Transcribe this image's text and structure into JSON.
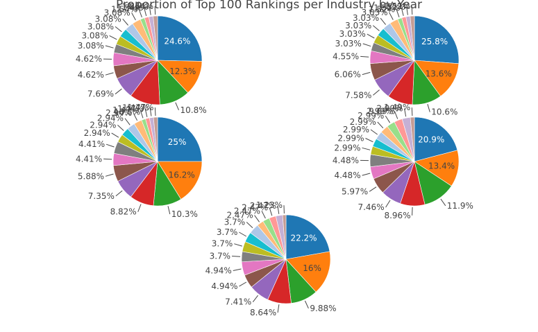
{
  "title": "Proportion of Top 100 Rankings per Industry by Year",
  "colors": [
    "#1f77b4",
    "#ff7f0e",
    "#2ca02c",
    "#d62728",
    "#9467bd",
    "#8c564b",
    "#e377c2",
    "#7f7f7f",
    "#bcbd22",
    "#17becf",
    "#aec7e8",
    "#ffbb78",
    "#98df8a",
    "#ff9896",
    "#c5b0d5",
    "#c49c94",
    "#f7b6d2",
    "#c7c7c7",
    "#dbdb8d",
    "#9edae5"
  ],
  "chart_data": [
    {
      "type": "pie",
      "values": [
        24.6,
        12.3,
        10.8,
        10.8,
        7.69,
        4.62,
        4.62,
        3.08,
        3.08,
        3.08,
        3.08,
        3.08,
        1.54,
        1.54,
        1.54,
        1.54
      ],
      "labels": [
        "24.6%",
        "12.3%",
        "10.8%",
        "10.8%",
        "7.69%",
        "4.62%",
        "4.62%",
        "3.08%",
        "3.08%",
        "3.08%",
        "3.08%",
        "3.08%",
        "1.54%",
        "1.54%",
        "1.54%",
        "1.54%"
      ]
    },
    {
      "type": "pie",
      "values": [
        25.8,
        13.6,
        10.6,
        9.09,
        7.58,
        6.06,
        4.55,
        3.03,
        3.03,
        3.03,
        3.03,
        3.03,
        1.52,
        1.52,
        1.52,
        1.52
      ],
      "labels": [
        "25.8%",
        "13.6%",
        "10.6%",
        "9.09%",
        "7.58%",
        "6.06%",
        "4.55%",
        "3.03%",
        "3.03%",
        "3.03%",
        "3.03%",
        "3.03%",
        "1.52%",
        "1.52%",
        "1.52%",
        "1.52%"
      ]
    },
    {
      "type": "pie",
      "values": [
        25,
        16.2,
        10.3,
        8.82,
        7.35,
        5.88,
        4.41,
        4.41,
        2.94,
        2.94,
        2.94,
        2.94,
        1.47,
        1.47,
        1.47,
        1.47
      ],
      "labels": [
        "25%",
        "16.2%",
        "10.3%",
        "8.82%",
        "7.35%",
        "5.88%",
        "4.41%",
        "4.41%",
        "2.94%",
        "2.94%",
        "2.94%",
        "2.94%",
        "1.47%",
        "1.47%",
        "1.47%",
        "1.47%"
      ]
    },
    {
      "type": "pie",
      "values": [
        20.9,
        13.4,
        11.9,
        8.96,
        7.46,
        5.97,
        4.48,
        4.48,
        2.99,
        2.99,
        2.99,
        2.99,
        2.99,
        2.99,
        2.99,
        1.49
      ],
      "labels": [
        "20.9%",
        "13.4%",
        "11.9%",
        "8.96%",
        "7.46%",
        "5.97%",
        "4.48%",
        "4.48%",
        "2.99%",
        "2.99%",
        "2.99%",
        "2.99%",
        "2.99%",
        "2.99%",
        "2.99%",
        "1.49%"
      ]
    },
    {
      "type": "pie",
      "values": [
        22.2,
        16,
        9.88,
        8.64,
        7.41,
        4.94,
        4.94,
        3.7,
        3.7,
        3.7,
        3.7,
        2.47,
        2.47,
        2.47,
        2.47,
        1.23
      ],
      "labels": [
        "22.2%",
        "16%",
        "9.88%",
        "8.64%",
        "7.41%",
        "4.94%",
        "4.94%",
        "3.7%",
        "3.7%",
        "3.7%",
        "3.7%",
        "2.47%",
        "2.47%",
        "2.47%",
        "2.47%",
        "1.23%"
      ]
    }
  ]
}
